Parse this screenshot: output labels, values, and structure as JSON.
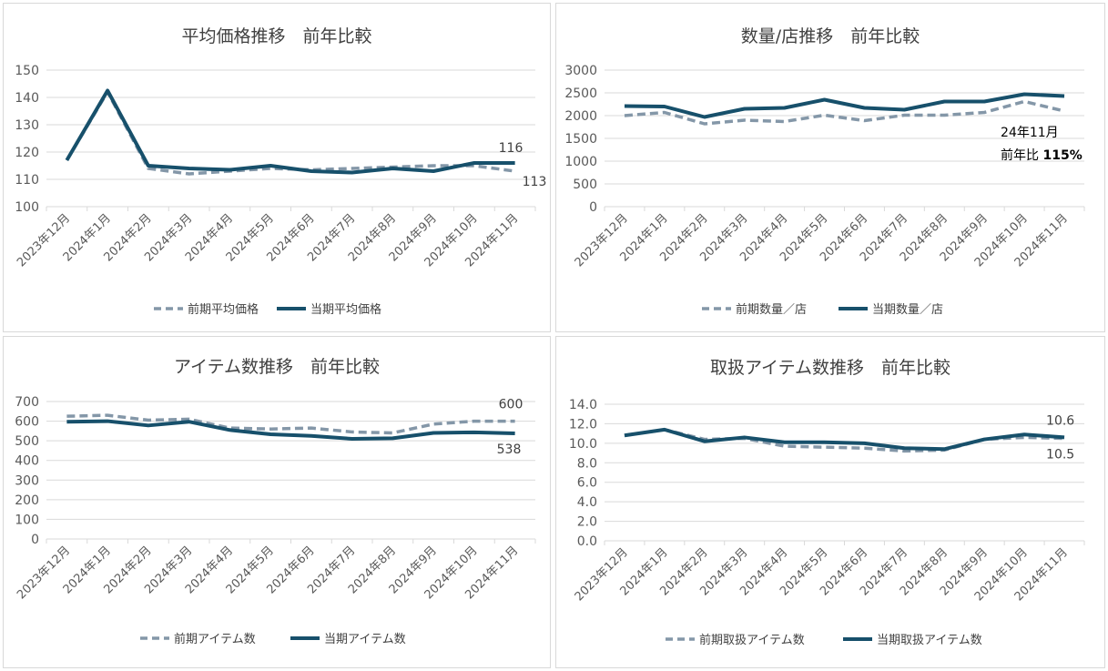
{
  "chart_data": [
    {
      "type": "line",
      "title": "平均価格推移　前年比較",
      "categories": [
        "2023年12月",
        "2024年1月",
        "2024年2月",
        "2024年3月",
        "2024年4月",
        "2024年5月",
        "2024年6月",
        "2024年7月",
        "2024年8月",
        "2024年9月",
        "2024年10月",
        "2024年11月"
      ],
      "ylim": [
        100,
        150
      ],
      "yticks": [
        "100",
        "110",
        "120",
        "130",
        "140",
        "150"
      ],
      "grid": true,
      "legend": "bottom",
      "series": [
        {
          "name": "前期平均価格",
          "style": "dashed",
          "color": "#8497a8",
          "values": [
            117,
            142,
            114,
            112,
            113,
            114,
            113.5,
            114,
            114.5,
            115,
            115,
            113
          ],
          "end_label": "113"
        },
        {
          "name": "当期平均価格",
          "style": "solid",
          "color": "#17506b",
          "values": [
            117,
            142.5,
            115,
            114,
            113.5,
            115,
            113,
            112.5,
            114,
            113,
            116,
            116
          ],
          "end_label": "116"
        }
      ]
    },
    {
      "type": "line",
      "title": "数量/店推移　前年比較",
      "categories": [
        "2023年12月",
        "2024年1月",
        "2024年2月",
        "2024年3月",
        "2024年4月",
        "2024年5月",
        "2024年6月",
        "2024年7月",
        "2024年8月",
        "2024年9月",
        "2024年10月",
        "2024年11月"
      ],
      "ylim": [
        0,
        3000
      ],
      "yticks": [
        "0",
        "500",
        "1000",
        "1500",
        "2000",
        "2500",
        "3000"
      ],
      "grid": true,
      "legend": "bottom",
      "annotation": {
        "line1": "24年11月",
        "line2_prefix": "前年比 ",
        "line2_value": "115%"
      },
      "series": [
        {
          "name": "前期数量／店",
          "style": "dashed",
          "color": "#8497a8",
          "values": [
            2000,
            2070,
            1820,
            1900,
            1870,
            2010,
            1890,
            2010,
            2010,
            2070,
            2310,
            2100
          ]
        },
        {
          "name": "当期数量／店",
          "style": "solid",
          "color": "#17506b",
          "values": [
            2210,
            2200,
            1970,
            2150,
            2170,
            2350,
            2170,
            2130,
            2310,
            2310,
            2470,
            2430
          ]
        }
      ]
    },
    {
      "type": "line",
      "title": "アイテム数推移　前年比較",
      "categories": [
        "2023年12月",
        "2024年1月",
        "2024年2月",
        "2024年3月",
        "2024年4月",
        "2024年5月",
        "2024年6月",
        "2024年7月",
        "2024年8月",
        "2024年9月",
        "2024年10月",
        "2024年11月"
      ],
      "ylim": [
        0,
        700
      ],
      "yticks": [
        "0",
        "100",
        "200",
        "300",
        "400",
        "500",
        "600",
        "700"
      ],
      "grid": true,
      "legend": "bottom",
      "series": [
        {
          "name": "前期アイテム数",
          "style": "dashed",
          "color": "#8497a8",
          "values": [
            625,
            630,
            605,
            610,
            565,
            560,
            565,
            545,
            540,
            585,
            600,
            600
          ],
          "end_label": "600"
        },
        {
          "name": "当期アイテム数",
          "style": "solid",
          "color": "#17506b",
          "values": [
            597,
            600,
            578,
            597,
            555,
            533,
            525,
            510,
            513,
            540,
            543,
            538
          ],
          "end_label": "538"
        }
      ]
    },
    {
      "type": "line",
      "title": "取扱アイテム数推移　前年比較",
      "categories": [
        "2023年12月",
        "2024年1月",
        "2024年2月",
        "2024年3月",
        "2024年4月",
        "2024年5月",
        "2024年6月",
        "2024年7月",
        "2024年8月",
        "2024年9月",
        "2024年10月",
        "2024年11月"
      ],
      "ylim": [
        0,
        14
      ],
      "yticks": [
        "0.0",
        "2.0",
        "4.0",
        "6.0",
        "8.0",
        "10.0",
        "12.0",
        "14.0"
      ],
      "grid": true,
      "legend": "bottom",
      "series": [
        {
          "name": "前期取扱アイテム数",
          "style": "dashed",
          "color": "#8497a8",
          "values": [
            10.8,
            11.4,
            10.4,
            10.5,
            9.7,
            9.6,
            9.5,
            9.2,
            9.3,
            10.4,
            10.6,
            10.5
          ],
          "end_label": "10.5"
        },
        {
          "name": "当期取扱アイテム数",
          "style": "solid",
          "color": "#17506b",
          "values": [
            10.8,
            11.4,
            10.2,
            10.6,
            10.1,
            10.1,
            10.0,
            9.5,
            9.4,
            10.4,
            10.9,
            10.6
          ],
          "end_label": "10.6"
        }
      ]
    }
  ]
}
